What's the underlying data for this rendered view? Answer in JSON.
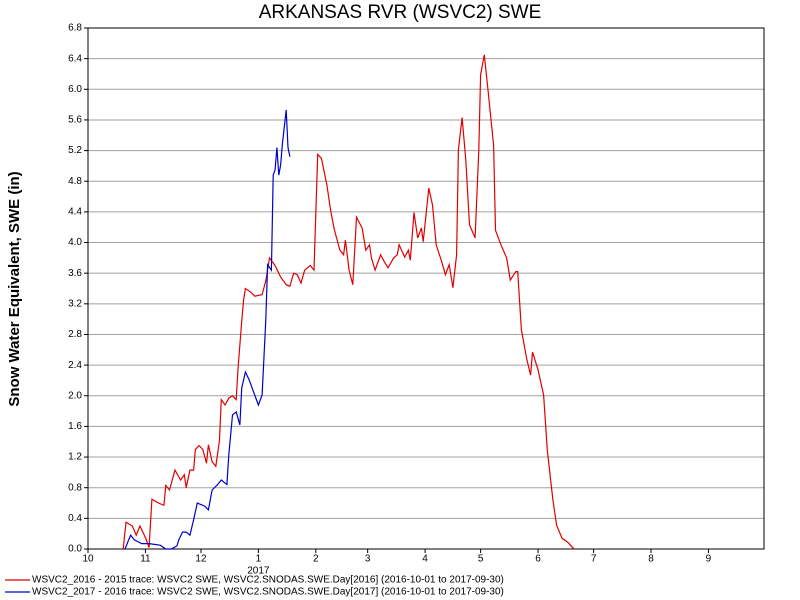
{
  "chart_data": {
    "type": "line",
    "title": "ARKANSAS RVR (WSVC2) SWE",
    "y_label": "Snow Water Equivalent, SWE (in)",
    "xlim": [
      0,
      365
    ],
    "xticks": [
      {
        "value": 0,
        "label": "10"
      },
      {
        "value": 31,
        "label": "11"
      },
      {
        "value": 61,
        "label": "12"
      },
      {
        "value": 92,
        "label": "1"
      },
      {
        "value": 123,
        "label": "2"
      },
      {
        "value": 151,
        "label": "3"
      },
      {
        "value": 182,
        "label": "4"
      },
      {
        "value": 212,
        "label": "5"
      },
      {
        "value": 243,
        "label": "6"
      },
      {
        "value": 273,
        "label": "7"
      },
      {
        "value": 304,
        "label": "8"
      },
      {
        "value": 335,
        "label": "9"
      }
    ],
    "x_year_tick": {
      "value": 92,
      "label": "2017"
    },
    "ylim": [
      0,
      6.8
    ],
    "yticks": [
      {
        "value": 0,
        "label": "0.0"
      },
      0.4,
      0.8,
      1.2,
      1.6,
      {
        "value": 2,
        "label": "2.0"
      },
      2.4,
      2.8,
      3.2,
      3.6,
      {
        "value": 4,
        "label": "4.0"
      },
      4.4,
      4.8,
      5.2,
      5.6,
      {
        "value": 6,
        "label": "6.0"
      },
      6.4,
      6.8
    ],
    "grid": true,
    "legend": "bottom",
    "series": [
      {
        "name": "WSVC2_2016 - 2015 trace: WSVC2 SWE, WSVC2.SNODAS.SWE.Day[2016] (2016-10-01 to 2017-09-30)",
        "color": "#e00000",
        "x": [
          19,
          20.5,
          24,
          26,
          28,
          31,
          33,
          34.5,
          38,
          41,
          42,
          44,
          47,
          50,
          52,
          53,
          55,
          57,
          58,
          60,
          62,
          64,
          65,
          67,
          69,
          71,
          72,
          74,
          76,
          78,
          80,
          81,
          83,
          84,
          85,
          88,
          90,
          94,
          96,
          98,
          101,
          104,
          107,
          109,
          111,
          113,
          115,
          117,
          120,
          122,
          124,
          126,
          129,
          131,
          133,
          136,
          138,
          139,
          141,
          143,
          145,
          148,
          150,
          152,
          153,
          155,
          158,
          160,
          162,
          165,
          167,
          168,
          171,
          173,
          174,
          176,
          178,
          180,
          181,
          184,
          186,
          188,
          191,
          193,
          195,
          197,
          199,
          200,
          202,
          204,
          206,
          209,
          211,
          212,
          214,
          216,
          219,
          220,
          223,
          226,
          228,
          231,
          232,
          234,
          237,
          239,
          240,
          243,
          246,
          248,
          251,
          253,
          256,
          259,
          262,
          263
        ],
        "values": [
          0,
          0.35,
          0.3,
          0.18,
          0.3,
          0.15,
          0.02,
          0.65,
          0.6,
          0.57,
          0.83,
          0.77,
          1.03,
          0.9,
          0.97,
          0.8,
          1.03,
          1.03,
          1.3,
          1.35,
          1.3,
          1.12,
          1.36,
          1.14,
          1.08,
          1.42,
          1.95,
          1.88,
          1.97,
          2.0,
          1.95,
          2.35,
          2.97,
          3.25,
          3.4,
          3.35,
          3.3,
          3.32,
          3.5,
          3.8,
          3.7,
          3.55,
          3.45,
          3.43,
          3.6,
          3.58,
          3.47,
          3.64,
          3.7,
          3.64,
          5.15,
          5.1,
          4.75,
          4.42,
          4.17,
          3.9,
          3.84,
          4.03,
          3.64,
          3.45,
          4.33,
          4.19,
          3.9,
          3.97,
          3.8,
          3.64,
          3.84,
          3.75,
          3.67,
          3.8,
          3.84,
          3.97,
          3.81,
          3.9,
          3.77,
          4.39,
          4.06,
          4.19,
          4.01,
          4.71,
          4.49,
          3.97,
          3.75,
          3.58,
          3.71,
          3.41,
          3.84,
          5.21,
          5.63,
          5.08,
          4.23,
          4.06,
          5.21,
          6.19,
          6.45,
          5.99,
          5.27,
          4.16,
          3.97,
          3.8,
          3.51,
          3.62,
          3.62,
          2.86,
          2.47,
          2.27,
          2.57,
          2.34,
          2.01,
          1.29,
          0.64,
          0.31,
          0.14,
          0.09,
          0.01,
          0
        ]
      },
      {
        "name": "WSVC2_2017 - 2016 trace: WSVC2 SWE, WSVC2.SNODAS.SWE.Day[2017] (2016-10-01 to 2017-09-30)",
        "color": "#0000cc",
        "x": [
          20,
          23,
          25,
          29,
          33,
          39,
          42,
          45,
          48,
          49,
          51,
          53,
          55,
          57,
          59,
          60,
          63,
          65,
          67,
          70,
          72,
          75,
          76,
          78,
          80,
          82,
          83,
          85,
          87,
          90,
          92,
          94,
          96,
          97,
          99,
          100,
          101,
          102,
          103,
          104,
          105,
          107,
          108,
          109
        ],
        "values": [
          0,
          0.18,
          0.12,
          0.07,
          0.07,
          0.05,
          0,
          0,
          0.04,
          0.12,
          0.22,
          0.22,
          0.18,
          0.38,
          0.6,
          0.59,
          0.56,
          0.51,
          0.77,
          0.84,
          0.9,
          0.84,
          1.23,
          1.75,
          1.79,
          1.62,
          2.1,
          2.31,
          2.21,
          2.01,
          1.88,
          2.01,
          2.99,
          3.71,
          3.64,
          4.88,
          4.95,
          5.24,
          4.88,
          5.01,
          5.3,
          5.73,
          5.24,
          5.12
        ]
      }
    ]
  }
}
